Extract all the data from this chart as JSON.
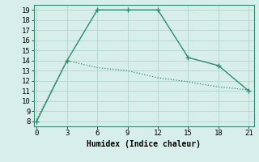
{
  "xlabel": "Humidex (Indice chaleur)",
  "line1_x": [
    0,
    3,
    6,
    9,
    12,
    15,
    18,
    21
  ],
  "line1_y": [
    8,
    14,
    19,
    19,
    19,
    14.3,
    13.5,
    11
  ],
  "line2_x": [
    0,
    3,
    6,
    9,
    12,
    15,
    18,
    21
  ],
  "line2_y": [
    8.2,
    14.0,
    13.3,
    13.0,
    12.3,
    11.9,
    11.4,
    11.1
  ],
  "color": "#2e8b72",
  "xlim": [
    -0.3,
    21.5
  ],
  "ylim": [
    7.5,
    19.5
  ],
  "xticks": [
    0,
    3,
    6,
    9,
    12,
    15,
    18,
    21
  ],
  "yticks": [
    8,
    9,
    10,
    11,
    12,
    13,
    14,
    15,
    16,
    17,
    18,
    19
  ],
  "bg_color": "#d8eeea",
  "grid_color": "#b8d8d2"
}
